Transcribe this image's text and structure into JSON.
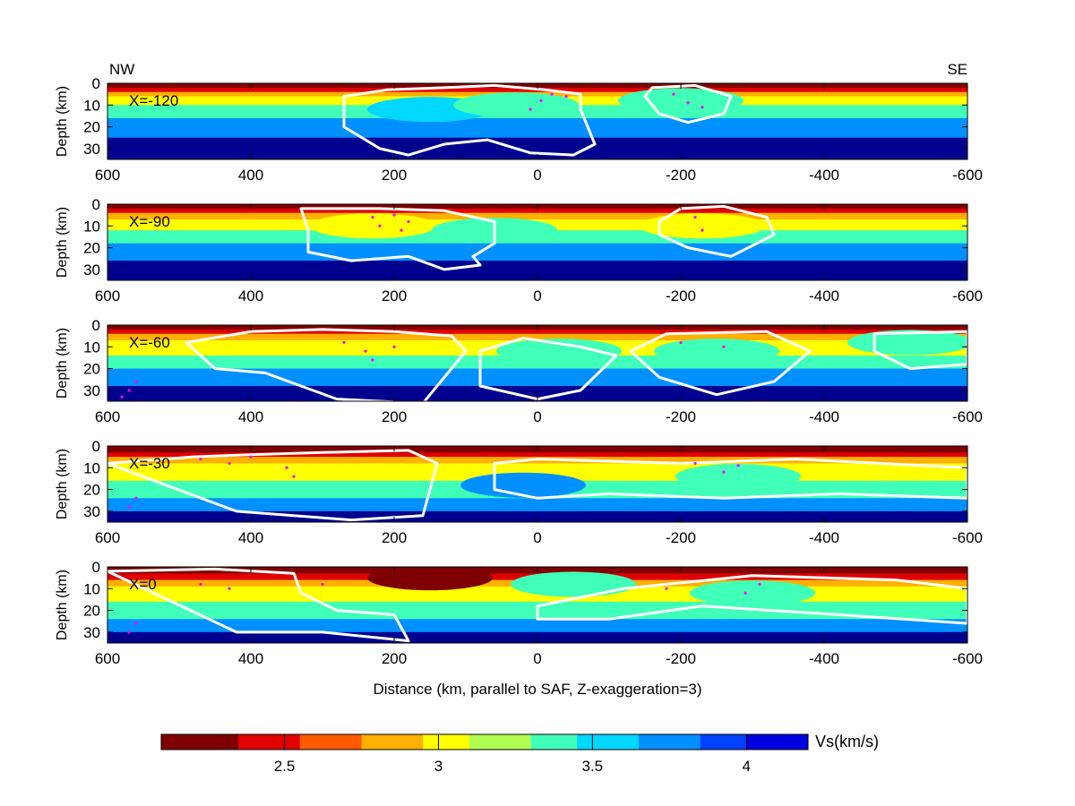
{
  "figure": {
    "left_direction": "NW",
    "right_direction": "SE",
    "xlabel": "Distance (km, parallel to SAF, Z-exaggeration=3)",
    "ylabel": "Depth (km)",
    "colorbar_label": "Vs(km/s)"
  },
  "chart_data": [
    {
      "type": "heatmap",
      "panel_label": "X=-120",
      "xlabel": "",
      "ylabel": "Depth (km)",
      "x_axis": {
        "range": [
          600,
          -600
        ],
        "ticks": [
          "600",
          "400",
          "200",
          "0",
          "-200",
          "-400",
          "-600"
        ]
      },
      "y_axis": {
        "range": [
          0,
          35
        ],
        "ticks": [
          "0",
          "10",
          "20",
          "30"
        ],
        "inverted": true
      },
      "depth_bands_vs": [
        [
          0,
          2.2
        ],
        [
          2,
          2.5
        ],
        [
          4,
          2.8
        ],
        [
          6,
          3.0
        ],
        [
          10,
          3.4
        ],
        [
          16,
          3.8
        ],
        [
          25,
          4.2
        ]
      ],
      "anomalies": [
        {
          "x": 150,
          "depth": 12,
          "vs": 3.5
        },
        {
          "x": 30,
          "depth": 10,
          "vs": 3.4
        },
        {
          "x": -200,
          "depth": 8,
          "vs": 3.3
        }
      ],
      "white_contours": [
        {
          "points": [
            [
              270,
              6
            ],
            [
              210,
              3
            ],
            [
              130,
              2
            ],
            [
              60,
              1
            ],
            [
              -10,
              3
            ],
            [
              -60,
              5
            ],
            [
              -60,
              12
            ],
            [
              -80,
              28
            ],
            [
              -50,
              33
            ],
            [
              10,
              32
            ],
            [
              70,
              26
            ],
            [
              130,
              28
            ],
            [
              180,
              33
            ],
            [
              220,
              30
            ],
            [
              270,
              20
            ]
          ]
        },
        {
          "points": [
            [
              -160,
              2
            ],
            [
              -220,
              1
            ],
            [
              -270,
              6
            ],
            [
              -260,
              14
            ],
            [
              -210,
              18
            ],
            [
              -170,
              14
            ],
            [
              -150,
              6
            ]
          ]
        }
      ],
      "earthquakes": [
        [
          -20,
          5
        ],
        [
          -5,
          8
        ],
        [
          10,
          12
        ],
        [
          -40,
          6
        ],
        [
          -190,
          5
        ],
        [
          -210,
          9
        ],
        [
          -230,
          11
        ]
      ],
      "colorbar": {
        "range": [
          2.1,
          4.2
        ],
        "ticks": [
          2.5,
          3,
          3.5,
          4
        ],
        "tick_labels": [
          "2.5",
          "3",
          "3.5",
          "4"
        ],
        "label": "Vs(km/s)"
      }
    },
    {
      "type": "heatmap",
      "panel_label": "X=-90",
      "xlabel": "",
      "ylabel": "Depth (km)",
      "x_axis": {
        "range": [
          600,
          -600
        ],
        "ticks": [
          "600",
          "400",
          "200",
          "0",
          "-200",
          "-400",
          "-600"
        ]
      },
      "y_axis": {
        "range": [
          0,
          35
        ],
        "ticks": [
          "0",
          "10",
          "20",
          "30"
        ],
        "inverted": true
      },
      "depth_bands_vs": [
        [
          0,
          2.2
        ],
        [
          2,
          2.5
        ],
        [
          4,
          2.8
        ],
        [
          7,
          3.0
        ],
        [
          12,
          3.4
        ],
        [
          18,
          3.8
        ],
        [
          26,
          4.2
        ]
      ],
      "anomalies": [
        {
          "x": 230,
          "depth": 10,
          "vs": 3.0
        },
        {
          "x": 60,
          "depth": 12,
          "vs": 3.4
        },
        {
          "x": -230,
          "depth": 10,
          "vs": 3.0
        }
      ],
      "white_contours": [
        {
          "points": [
            [
              320,
              12
            ],
            [
              330,
              2
            ],
            [
              220,
              2
            ],
            [
              130,
              3
            ],
            [
              60,
              8
            ],
            [
              60,
              18
            ],
            [
              90,
              24
            ],
            [
              80,
              28
            ],
            [
              130,
              30
            ],
            [
              180,
              24
            ],
            [
              260,
              26
            ],
            [
              320,
              22
            ]
          ]
        },
        {
          "points": [
            [
              -170,
              8
            ],
            [
              -200,
              2
            ],
            [
              -260,
              1
            ],
            [
              -320,
              6
            ],
            [
              -330,
              14
            ],
            [
              -270,
              24
            ],
            [
              -210,
              20
            ],
            [
              -170,
              14
            ]
          ]
        }
      ],
      "earthquakes": [
        [
          200,
          5
        ],
        [
          180,
          8
        ],
        [
          190,
          12
        ],
        [
          230,
          6
        ],
        [
          220,
          10
        ],
        [
          -220,
          6
        ],
        [
          -230,
          12
        ]
      ],
      "colorbar": {
        "range": [
          2.1,
          4.2
        ],
        "ticks": [
          2.5,
          3,
          3.5,
          4
        ],
        "tick_labels": [
          "2.5",
          "3",
          "3.5",
          "4"
        ],
        "label": "Vs(km/s)"
      }
    },
    {
      "type": "heatmap",
      "panel_label": "X=-60",
      "xlabel": "",
      "ylabel": "Depth (km)",
      "x_axis": {
        "range": [
          600,
          -600
        ],
        "ticks": [
          "600",
          "400",
          "200",
          "0",
          "-200",
          "-400",
          "-600"
        ]
      },
      "y_axis": {
        "range": [
          0,
          35
        ],
        "ticks": [
          "0",
          "10",
          "20",
          "30"
        ],
        "inverted": true
      },
      "depth_bands_vs": [
        [
          0,
          2.2
        ],
        [
          2,
          2.5
        ],
        [
          4,
          2.8
        ],
        [
          7,
          3.0
        ],
        [
          14,
          3.4
        ],
        [
          20,
          3.8
        ],
        [
          28,
          4.2
        ]
      ],
      "anomalies": [
        {
          "x": -30,
          "depth": 12,
          "vs": 3.4
        },
        {
          "x": -250,
          "depth": 12,
          "vs": 3.4
        },
        {
          "x": -520,
          "depth": 8,
          "vs": 3.4
        }
      ],
      "white_contours": [
        {
          "points": [
            [
              490,
              8
            ],
            [
              400,
              3
            ],
            [
              300,
              2
            ],
            [
              200,
              3
            ],
            [
              120,
              5
            ],
            [
              100,
              12
            ],
            [
              160,
              36
            ],
            [
              280,
              34
            ],
            [
              380,
              22
            ],
            [
              450,
              20
            ]
          ]
        },
        {
          "points": [
            [
              80,
              12
            ],
            [
              20,
              6
            ],
            [
              -60,
              10
            ],
            [
              -110,
              14
            ],
            [
              -60,
              30
            ],
            [
              0,
              34
            ],
            [
              80,
              28
            ]
          ]
        },
        {
          "points": [
            [
              -130,
              12
            ],
            [
              -180,
              4
            ],
            [
              -320,
              3
            ],
            [
              -380,
              12
            ],
            [
              -330,
              26
            ],
            [
              -250,
              32
            ],
            [
              -170,
              24
            ]
          ]
        },
        {
          "points": [
            [
              -470,
              4
            ],
            [
              -600,
              3
            ],
            [
              -600,
              18
            ],
            [
              -520,
              20
            ],
            [
              -470,
              12
            ]
          ]
        }
      ],
      "earthquakes": [
        [
          270,
          8
        ],
        [
          240,
          12
        ],
        [
          230,
          16
        ],
        [
          200,
          10
        ],
        [
          560,
          26
        ],
        [
          570,
          30
        ],
        [
          580,
          33
        ],
        [
          -200,
          8
        ],
        [
          -260,
          10
        ]
      ],
      "colorbar": {
        "range": [
          2.1,
          4.2
        ],
        "ticks": [
          2.5,
          3,
          3.5,
          4
        ],
        "tick_labels": [
          "2.5",
          "3",
          "3.5",
          "4"
        ],
        "label": "Vs(km/s)"
      }
    },
    {
      "type": "heatmap",
      "panel_label": "X=-30",
      "xlabel": "",
      "ylabel": "Depth (km)",
      "x_axis": {
        "range": [
          600,
          -600
        ],
        "ticks": [
          "600",
          "400",
          "200",
          "0",
          "-200",
          "-400",
          "-600"
        ]
      },
      "y_axis": {
        "range": [
          0,
          35
        ],
        "ticks": [
          "0",
          "10",
          "20",
          "30"
        ],
        "inverted": true
      },
      "depth_bands_vs": [
        [
          0,
          2.2
        ],
        [
          3,
          2.5
        ],
        [
          5,
          2.8
        ],
        [
          8,
          3.0
        ],
        [
          16,
          3.4
        ],
        [
          24,
          3.8
        ],
        [
          30,
          4.2
        ]
      ],
      "anomalies": [
        {
          "x": 20,
          "depth": 18,
          "vs": 3.8
        },
        {
          "x": -280,
          "depth": 14,
          "vs": 3.4
        }
      ],
      "white_contours": [
        {
          "points": [
            [
              600,
              8
            ],
            [
              480,
              5
            ],
            [
              400,
              4
            ],
            [
              300,
              3
            ],
            [
              180,
              2
            ],
            [
              140,
              8
            ],
            [
              160,
              32
            ],
            [
              260,
              34
            ],
            [
              420,
              30
            ]
          ]
        },
        {
          "points": [
            [
              60,
              8
            ],
            [
              0,
              6
            ],
            [
              -200,
              8
            ],
            [
              -360,
              6
            ],
            [
              -600,
              10
            ],
            [
              -600,
              24
            ],
            [
              -420,
              22
            ],
            [
              -260,
              24
            ],
            [
              -100,
              22
            ],
            [
              0,
              24
            ],
            [
              60,
              20
            ]
          ]
        }
      ],
      "earthquakes": [
        [
          470,
          6
        ],
        [
          430,
          8
        ],
        [
          400,
          5
        ],
        [
          350,
          10
        ],
        [
          340,
          14
        ],
        [
          560,
          24
        ],
        [
          570,
          28
        ],
        [
          -220,
          8
        ],
        [
          -260,
          12
        ],
        [
          -280,
          9
        ]
      ],
      "colorbar": {
        "range": [
          2.1,
          4.2
        ],
        "ticks": [
          2.5,
          3,
          3.5,
          4
        ],
        "tick_labels": [
          "2.5",
          "3",
          "3.5",
          "4"
        ],
        "label": "Vs(km/s)"
      }
    },
    {
      "type": "heatmap",
      "panel_label": "X=0",
      "xlabel": "Distance (km, parallel to SAF, Z-exaggeration=3)",
      "ylabel": "Depth (km)",
      "x_axis": {
        "range": [
          600,
          -600
        ],
        "ticks": [
          "600",
          "400",
          "200",
          "0",
          "-200",
          "-400",
          "-600"
        ]
      },
      "y_axis": {
        "range": [
          0,
          35
        ],
        "ticks": [
          "0",
          "10",
          "20",
          "30"
        ],
        "inverted": true
      },
      "depth_bands_vs": [
        [
          0,
          2.2
        ],
        [
          3,
          2.5
        ],
        [
          6,
          2.8
        ],
        [
          9,
          3.0
        ],
        [
          16,
          3.4
        ],
        [
          24,
          3.8
        ],
        [
          30,
          4.2
        ]
      ],
      "anomalies": [
        {
          "x": 150,
          "depth": 5,
          "vs": 2.2
        },
        {
          "x": -50,
          "depth": 8,
          "vs": 3.4
        },
        {
          "x": -300,
          "depth": 12,
          "vs": 3.4
        }
      ],
      "white_contours": [
        {
          "points": [
            [
              600,
              2
            ],
            [
              450,
              1
            ],
            [
              340,
              3
            ],
            [
              330,
              12
            ],
            [
              280,
              20
            ],
            [
              200,
              22
            ],
            [
              180,
              34
            ],
            [
              300,
              30
            ],
            [
              420,
              30
            ]
          ]
        },
        {
          "points": [
            [
              0,
              18
            ],
            [
              -120,
              10
            ],
            [
              -300,
              4
            ],
            [
              -500,
              6
            ],
            [
              -600,
              10
            ],
            [
              -600,
              26
            ],
            [
              -420,
              22
            ],
            [
              -230,
              18
            ],
            [
              -100,
              24
            ],
            [
              0,
              24
            ]
          ]
        }
      ],
      "earthquakes": [
        [
          470,
          8
        ],
        [
          430,
          10
        ],
        [
          300,
          8
        ],
        [
          560,
          26
        ],
        [
          570,
          30
        ],
        [
          -180,
          10
        ],
        [
          -290,
          12
        ],
        [
          -310,
          8
        ]
      ],
      "colorbar": {
        "range": [
          2.1,
          4.2
        ],
        "ticks": [
          2.5,
          3,
          3.5,
          4
        ],
        "tick_labels": [
          "2.5",
          "3",
          "3.5",
          "4"
        ],
        "label": "Vs(km/s)"
      }
    }
  ]
}
